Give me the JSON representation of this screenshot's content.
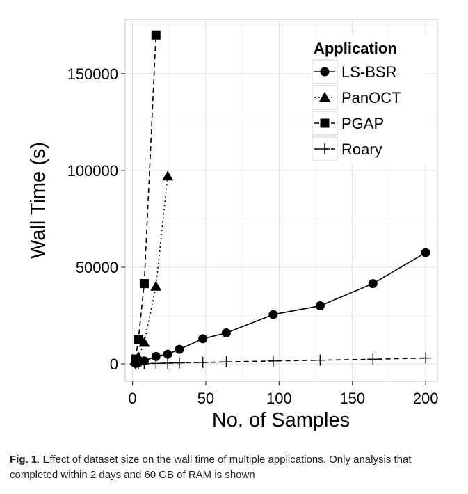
{
  "caption": {
    "label": "Fig. 1",
    "text": ". Effect of dataset size on the wall time of multiple applications. Only analysis that completed within 2 days and 60 GB of RAM is shown"
  },
  "chart_data": {
    "type": "line",
    "xlabel": "No. of Samples",
    "ylabel": "Wall Time (s)",
    "xlim": [
      -5,
      208
    ],
    "ylim": [
      -9000,
      178000
    ],
    "x_ticks": [
      0,
      50,
      100,
      150,
      200
    ],
    "y_ticks": [
      0,
      50000,
      100000,
      150000
    ],
    "x_tick_labels": [
      "0",
      "50",
      "100",
      "150",
      "200"
    ],
    "y_tick_labels": [
      "0",
      "50000",
      "100000",
      "150000"
    ],
    "grid": true,
    "legend": {
      "title": "Application",
      "position": "top-right"
    },
    "series": [
      {
        "name": "LS-BSR",
        "marker": "circle",
        "line": "solid",
        "x": [
          2,
          4,
          8,
          16,
          24,
          32,
          48,
          64,
          96,
          128,
          164,
          200
        ],
        "y": [
          200,
          600,
          1500,
          3800,
          5000,
          7500,
          13000,
          16000,
          25500,
          30000,
          41500,
          57500
        ]
      },
      {
        "name": "PanOCT",
        "marker": "triangle",
        "line": "dotted",
        "x": [
          2,
          4,
          8,
          16,
          24
        ],
        "y": [
          1500,
          3500,
          11000,
          40000,
          97000
        ]
      },
      {
        "name": "PGAP",
        "marker": "square",
        "line": "dashed",
        "x": [
          2,
          4,
          8,
          16
        ],
        "y": [
          2500,
          12500,
          41500,
          170000
        ]
      },
      {
        "name": "Roary",
        "marker": "plus",
        "line": "dashed",
        "x": [
          2,
          4,
          8,
          16,
          24,
          32,
          48,
          64,
          96,
          128,
          164,
          200
        ],
        "y": [
          30,
          60,
          120,
          250,
          380,
          500,
          750,
          1000,
          1500,
          1900,
          2400,
          3000
        ]
      }
    ]
  }
}
